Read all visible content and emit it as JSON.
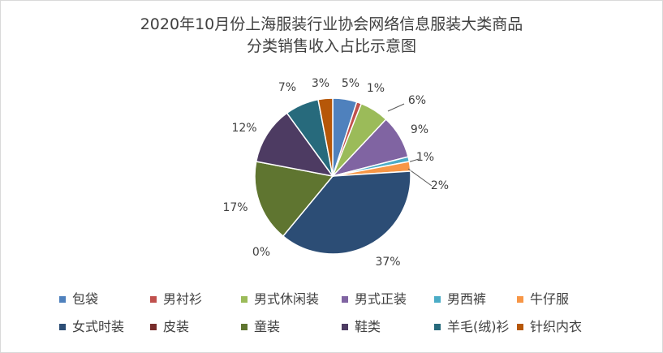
{
  "chart_data": {
    "type": "pie",
    "title_lines": [
      "2020年10月份上海服装行业协会网络信息服装大类商品",
      "分类销售收入占比示意图"
    ],
    "categories": [
      "包袋",
      "男衬衫",
      "男式休闲装",
      "男式正装",
      "男西裤",
      "牛仔服",
      "女式时装",
      "皮装",
      "童装",
      "鞋类",
      "羊毛(绒)衫",
      "针织内衣"
    ],
    "values": [
      5,
      1,
      6,
      9,
      1,
      2,
      37,
      0,
      17,
      12,
      7,
      3
    ],
    "labels": [
      "5%",
      "1%",
      "6%",
      "9%",
      "1%",
      "2%",
      "37%",
      "0%",
      "17%",
      "12%",
      "7%",
      "3%"
    ],
    "colors": [
      "#4f81bd",
      "#c0504d",
      "#9bbb59",
      "#8064a2",
      "#4bacc6",
      "#f79646",
      "#2c4d75",
      "#772c2a",
      "#5f7530",
      "#4d3b62",
      "#276a7c",
      "#b65708"
    ],
    "legend_position": "bottom"
  }
}
